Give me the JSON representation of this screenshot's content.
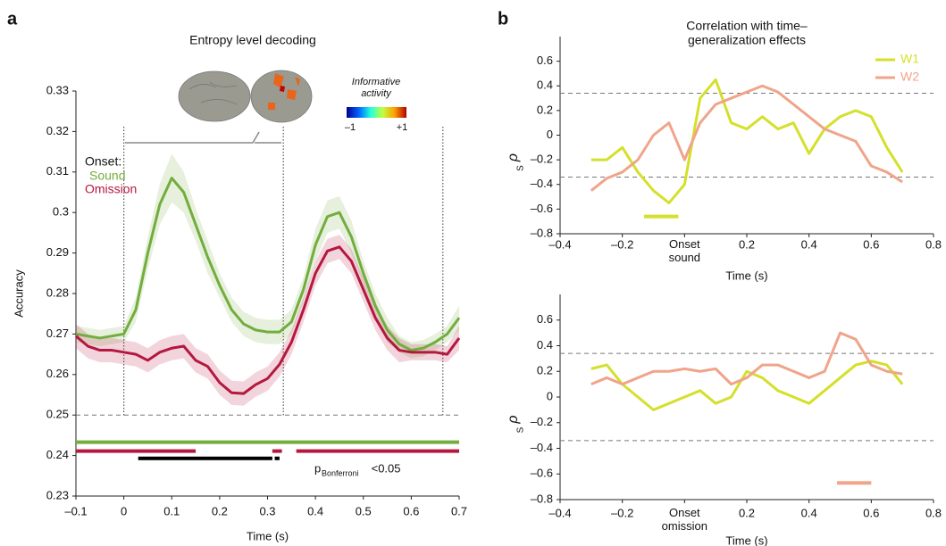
{
  "chart_data": [
    {
      "type": "line",
      "panel": "a",
      "title": "Entropy level decoding",
      "xlabel": "Time (s)",
      "ylabel": "Accuracy",
      "xlim": [
        -0.1,
        0.7
      ],
      "ylim": [
        0.23,
        0.33
      ],
      "xticks": [
        {
          "value": -0.1,
          "label": "–0.1"
        },
        0,
        0.1,
        0.2,
        0.3,
        0.4,
        0.5,
        0.6,
        0.7
      ],
      "yticks": [
        0.23,
        0.24,
        0.25,
        0.26,
        0.27,
        0.28,
        0.29,
        0.3,
        0.31,
        0.32,
        0.33
      ],
      "x": [
        -0.1,
        -0.075,
        -0.05,
        -0.025,
        0,
        0.025,
        0.05,
        0.075,
        0.1,
        0.125,
        0.15,
        0.175,
        0.2,
        0.225,
        0.25,
        0.275,
        0.3,
        0.325,
        0.35,
        0.375,
        0.4,
        0.425,
        0.45,
        0.475,
        0.5,
        0.525,
        0.55,
        0.575,
        0.6,
        0.625,
        0.65,
        0.675,
        0.7
      ],
      "legend_title": "Onset:",
      "series": [
        {
          "name": "Sound",
          "color": "#72ad3e",
          "values": [
            0.27,
            0.2695,
            0.269,
            0.2695,
            0.27,
            0.276,
            0.29,
            0.302,
            0.3085,
            0.305,
            0.297,
            0.289,
            0.282,
            0.276,
            0.2725,
            0.271,
            0.2705,
            0.2705,
            0.273,
            0.281,
            0.292,
            0.299,
            0.3,
            0.294,
            0.285,
            0.277,
            0.271,
            0.2675,
            0.266,
            0.2665,
            0.268,
            0.27,
            0.274
          ],
          "error": [
            0.002,
            0.002,
            0.002,
            0.002,
            0.002,
            0.003,
            0.004,
            0.005,
            0.006,
            0.005,
            0.004,
            0.004,
            0.003,
            0.003,
            0.003,
            0.003,
            0.003,
            0.003,
            0.003,
            0.003,
            0.004,
            0.004,
            0.004,
            0.004,
            0.003,
            0.003,
            0.003,
            0.002,
            0.002,
            0.002,
            0.002,
            0.002,
            0.003
          ]
        },
        {
          "name": "Omission",
          "color": "#b5173f",
          "values": [
            0.2695,
            0.267,
            0.266,
            0.266,
            0.2655,
            0.265,
            0.2635,
            0.2655,
            0.2665,
            0.267,
            0.2635,
            0.262,
            0.258,
            0.2555,
            0.2553,
            0.2575,
            0.259,
            0.2625,
            0.268,
            0.276,
            0.285,
            0.2905,
            0.2915,
            0.288,
            0.281,
            0.274,
            0.269,
            0.266,
            0.2655,
            0.2655,
            0.2655,
            0.265,
            0.269
          ],
          "error": [
            0.003,
            0.003,
            0.003,
            0.003,
            0.003,
            0.003,
            0.003,
            0.003,
            0.003,
            0.003,
            0.003,
            0.003,
            0.003,
            0.003,
            0.003,
            0.003,
            0.003,
            0.003,
            0.003,
            0.003,
            0.003,
            0.003,
            0.003,
            0.003,
            0.003,
            0.003,
            0.003,
            0.003,
            0.002,
            0.002,
            0.002,
            0.002,
            0.003
          ]
        }
      ],
      "vlines": [
        0,
        0.333,
        0.666
      ],
      "hlines": [
        0.25
      ],
      "sig_bars": [
        {
          "color": "#72ad3e",
          "y": 0.2433,
          "spans": [
            [
              -0.1,
              0.7
            ]
          ]
        },
        {
          "color": "#b5173f",
          "y": 0.2411,
          "spans": [
            [
              -0.1,
              0.15
            ],
            [
              0.31,
              0.33
            ],
            [
              0.36,
              0.7
            ]
          ]
        },
        {
          "color": "#000000",
          "y": 0.2393,
          "spans": [
            [
              0.03,
              0.31
            ],
            [
              0.315,
              0.325
            ]
          ]
        }
      ],
      "sig_label": {
        "p": "p",
        "sub": "Bonferroni",
        "rest": " <0.05"
      },
      "inset": {
        "label": [
          "Informative",
          "activity"
        ],
        "min_label": "–1",
        "max_label": "+1"
      }
    },
    {
      "type": "line",
      "panel": "b",
      "title": [
        "Correlation with time–",
        "generalization effects"
      ],
      "xlabel": "Time (s)",
      "ylabel": "ρ",
      "ylabel_sub": "S",
      "xlim": [
        -0.4,
        0.8
      ],
      "ylim": [
        -0.8,
        0.8
      ],
      "xticks": [
        {
          "value": -0.4,
          "label": "–0.4"
        },
        {
          "value": -0.2,
          "label": "–0.2"
        },
        {
          "value": 0,
          "label": "Onset sound"
        },
        0.2,
        0.4,
        0.6,
        0.8
      ],
      "yticks": [
        {
          "value": -0.8,
          "label": "–0.8"
        },
        {
          "value": -0.6,
          "label": "–0.6"
        },
        {
          "value": -0.4,
          "label": "–0.4"
        },
        {
          "value": -0.2,
          "label": "–0.2"
        },
        0,
        0.2,
        0.4,
        0.6
      ],
      "x": [
        -0.3,
        -0.25,
        -0.2,
        -0.15,
        -0.1,
        -0.05,
        0,
        0.05,
        0.1,
        0.15,
        0.2,
        0.25,
        0.3,
        0.35,
        0.4,
        0.45,
        0.5,
        0.55,
        0.6,
        0.65,
        0.7
      ],
      "series": [
        {
          "name": "W1",
          "color": "#d4e02a",
          "values": [
            -0.2,
            -0.2,
            -0.1,
            -0.3,
            -0.45,
            -0.55,
            -0.4,
            0.3,
            0.45,
            0.1,
            0.05,
            0.15,
            0.05,
            0.1,
            -0.15,
            0.05,
            0.15,
            0.2,
            0.15,
            -0.1,
            -0.3
          ]
        },
        {
          "name": "W2",
          "color": "#f0a48a",
          "values": [
            -0.45,
            -0.35,
            -0.3,
            -0.2,
            0,
            0.1,
            -0.2,
            0.1,
            0.25,
            0.3,
            0.35,
            0.4,
            0.35,
            0.25,
            0.15,
            0.05,
            0,
            -0.05,
            -0.25,
            -0.3,
            -0.38
          ]
        }
      ],
      "hlines": [
        0.34,
        -0.34
      ],
      "sig_bars": [
        {
          "color": "#d4e02a",
          "y": -0.66,
          "spans": [
            [
              -0.13,
              -0.02
            ]
          ]
        }
      ]
    },
    {
      "type": "line",
      "xlabel": "Time (s)",
      "ylabel": "ρ",
      "ylabel_sub": "S",
      "xlim": [
        -0.4,
        0.8
      ],
      "ylim": [
        -0.8,
        0.8
      ],
      "xticks": [
        {
          "value": -0.4,
          "label": "–0.4"
        },
        {
          "value": -0.2,
          "label": "–0.2"
        },
        {
          "value": 0,
          "label": "Onset omission"
        },
        0.2,
        0.4,
        0.6,
        0.8
      ],
      "yticks": [
        {
          "value": -0.8,
          "label": "–0.8"
        },
        {
          "value": -0.6,
          "label": "–0.6"
        },
        {
          "value": -0.4,
          "label": "–0.4"
        },
        {
          "value": -0.2,
          "label": "–0.2"
        },
        0,
        0.2,
        0.4,
        0.6
      ],
      "x": [
        -0.3,
        -0.25,
        -0.2,
        -0.15,
        -0.1,
        -0.05,
        0,
        0.05,
        0.1,
        0.15,
        0.2,
        0.25,
        0.3,
        0.35,
        0.4,
        0.45,
        0.5,
        0.55,
        0.6,
        0.65,
        0.7
      ],
      "series": [
        {
          "color": "#d4e02a",
          "values": [
            0.22,
            0.25,
            0.1,
            0,
            -0.1,
            -0.05,
            0,
            0.05,
            -0.05,
            0,
            0.2,
            0.15,
            0.05,
            0,
            -0.05,
            0.05,
            0.15,
            0.25,
            0.28,
            0.25,
            0.1
          ]
        },
        {
          "color": "#f0a48a",
          "values": [
            0.1,
            0.15,
            0.1,
            0.15,
            0.2,
            0.2,
            0.22,
            0.2,
            0.22,
            0.1,
            0.15,
            0.25,
            0.25,
            0.2,
            0.15,
            0.2,
            0.5,
            0.45,
            0.25,
            0.2,
            0.18
          ]
        }
      ],
      "hlines": [
        0.34,
        -0.34
      ],
      "sig_bars": [
        {
          "color": "#f0a48a",
          "y": -0.67,
          "spans": [
            [
              0.49,
              0.6
            ]
          ]
        }
      ]
    }
  ]
}
